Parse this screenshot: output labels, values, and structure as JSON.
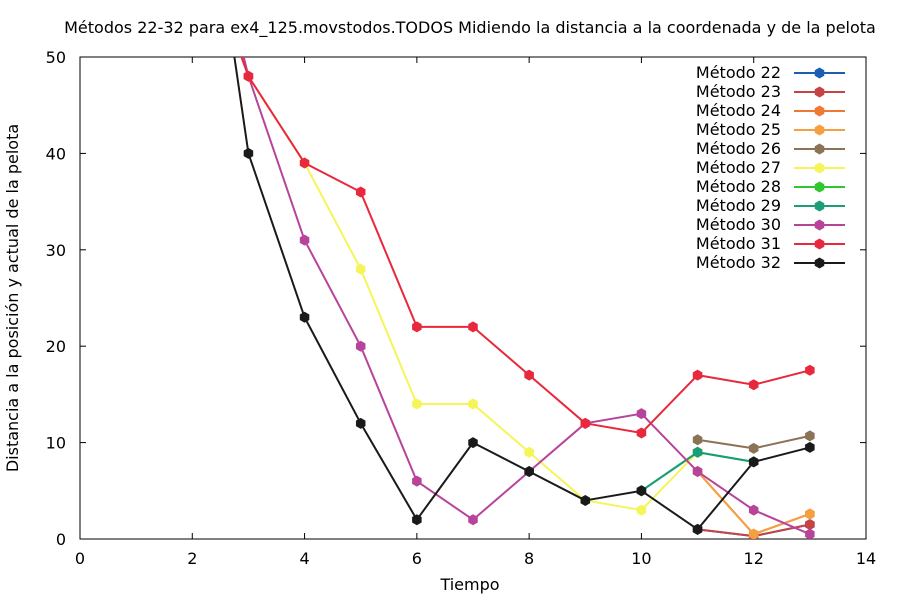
{
  "chart_data": {
    "type": "line",
    "title": "Métodos 22-32 para ex4_125.movstodos.TODOS Midiendo la distancia a la coordenada y de la pelota",
    "xlabel": "Tiempo",
    "ylabel": "Distancia a la posición y actual de la pelota",
    "xlim": [
      0,
      14
    ],
    "ylim": [
      0,
      50
    ],
    "xticks": [
      0,
      2,
      4,
      6,
      8,
      10,
      12,
      14
    ],
    "yticks": [
      0,
      10,
      20,
      30,
      40,
      50
    ],
    "grid": false,
    "legend_position": "top-right",
    "series": [
      {
        "name": "Método 22",
        "color": "#1a5fb4",
        "x": [
          11,
          12,
          13
        ],
        "y": [
          1.0,
          0.3,
          1.5
        ]
      },
      {
        "name": "Método 23",
        "color": "#c64343",
        "x": [
          11,
          12,
          13
        ],
        "y": [
          1.0,
          0.3,
          1.5
        ]
      },
      {
        "name": "Método 24",
        "color": "#f07832",
        "x": [
          11,
          12,
          13
        ],
        "y": [
          7.0,
          0.5,
          2.6
        ]
      },
      {
        "name": "Método 25",
        "color": "#f5a040",
        "x": [
          11,
          12,
          13
        ],
        "y": [
          7.0,
          0.5,
          2.6
        ]
      },
      {
        "name": "Método 26",
        "color": "#8b7355",
        "x": [
          11,
          12,
          13
        ],
        "y": [
          10.3,
          9.4,
          10.7
        ]
      },
      {
        "name": "Método 27",
        "color": "#f5f55a",
        "x": [
          2.5,
          3,
          4,
          5,
          6,
          7,
          8,
          9,
          10,
          11
        ],
        "y": [
          56,
          48,
          39,
          28,
          14,
          14,
          9,
          4,
          3,
          9
        ]
      },
      {
        "name": "Método 28",
        "color": "#2ec82e",
        "x": [
          10,
          11,
          12
        ],
        "y": [
          5,
          9,
          8
        ]
      },
      {
        "name": "Método 29",
        "color": "#1b9e77",
        "x": [
          10,
          11,
          12
        ],
        "y": [
          5,
          9,
          8
        ]
      },
      {
        "name": "Método 30",
        "color": "#b8439b",
        "x": [
          2.5,
          3,
          4,
          5,
          6,
          7,
          8,
          9,
          10,
          11,
          12,
          13
        ],
        "y": [
          60,
          48,
          31,
          20,
          6,
          2,
          7,
          12,
          13,
          7,
          3,
          0.5
        ]
      },
      {
        "name": "Método 31",
        "color": "#e8283c",
        "x": [
          2.5,
          3,
          4,
          5,
          6,
          7,
          8,
          9,
          10,
          11,
          12,
          13
        ],
        "y": [
          56,
          48,
          39,
          36,
          22,
          22,
          17,
          12,
          11,
          17,
          16,
          17.5
        ]
      },
      {
        "name": "Método 32",
        "color": "#1a1a1a",
        "x": [
          2.5,
          3,
          4,
          5,
          6,
          7,
          8,
          9,
          10,
          11,
          12,
          13
        ],
        "y": [
          60,
          40,
          23,
          12,
          2,
          10,
          7,
          4,
          5,
          1,
          8,
          9.5
        ]
      }
    ]
  }
}
